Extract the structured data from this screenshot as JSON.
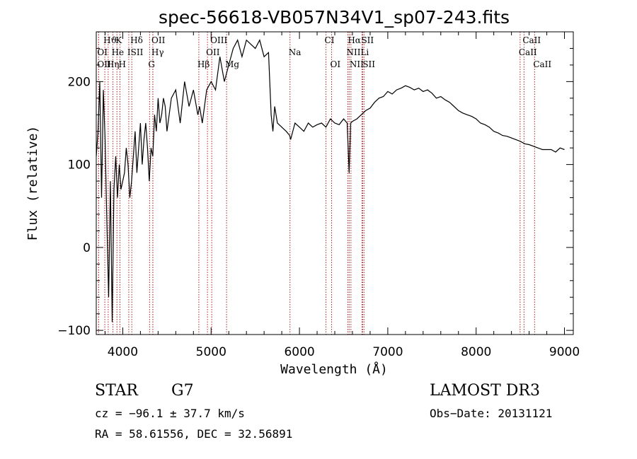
{
  "chart_data": {
    "type": "line",
    "title": "spec-56618-VB057N34V1_sp07-243.fits",
    "xlabel": "Wavelength (Å)",
    "ylabel": "Flux (relative)",
    "xlim": [
      3700,
      9100
    ],
    "ylim": [
      -105,
      260
    ],
    "xticks": [
      4000,
      5000,
      6000,
      7000,
      8000,
      9000
    ],
    "yticks": [
      -100,
      0,
      100,
      200
    ],
    "series": [
      {
        "name": "flux",
        "x": [
          3700,
          3720,
          3740,
          3760,
          3780,
          3800,
          3820,
          3840,
          3860,
          3880,
          3900,
          3920,
          3940,
          3960,
          3980,
          4000,
          4020,
          4040,
          4060,
          4080,
          4100,
          4120,
          4140,
          4160,
          4180,
          4200,
          4220,
          4240,
          4260,
          4280,
          4300,
          4320,
          4340,
          4360,
          4380,
          4400,
          4420,
          4440,
          4460,
          4480,
          4500,
          4550,
          4600,
          4650,
          4700,
          4750,
          4800,
          4850,
          4870,
          4900,
          4950,
          5000,
          5050,
          5100,
          5150,
          5200,
          5250,
          5300,
          5350,
          5400,
          5450,
          5500,
          5550,
          5600,
          5650,
          5680,
          5700,
          5720,
          5750,
          5800,
          5850,
          5890,
          5900,
          5950,
          6000,
          6050,
          6100,
          6150,
          6200,
          6250,
          6300,
          6350,
          6400,
          6450,
          6500,
          6540,
          6563,
          6580,
          6600,
          6650,
          6700,
          6750,
          6800,
          6850,
          6900,
          6950,
          7000,
          7050,
          7100,
          7150,
          7200,
          7250,
          7300,
          7350,
          7400,
          7450,
          7500,
          7550,
          7600,
          7650,
          7700,
          7750,
          7800,
          7850,
          7900,
          7950,
          8000,
          8050,
          8100,
          8150,
          8200,
          8250,
          8300,
          8350,
          8400,
          8450,
          8500,
          8550,
          8600,
          8650,
          8700,
          8750,
          8800,
          8850,
          8900,
          8950,
          9000
        ],
        "y": [
          110,
          140,
          200,
          60,
          190,
          130,
          30,
          -60,
          80,
          -90,
          70,
          110,
          60,
          100,
          70,
          80,
          90,
          120,
          100,
          60,
          80,
          110,
          140,
          90,
          120,
          150,
          100,
          130,
          150,
          120,
          80,
          120,
          110,
          160,
          140,
          180,
          150,
          160,
          180,
          170,
          140,
          180,
          190,
          150,
          200,
          170,
          190,
          160,
          170,
          150,
          190,
          200,
          190,
          230,
          200,
          220,
          240,
          250,
          230,
          250,
          245,
          240,
          250,
          230,
          235,
          160,
          140,
          170,
          150,
          145,
          140,
          135,
          130,
          150,
          145,
          140,
          150,
          145,
          148,
          150,
          145,
          155,
          150,
          148,
          155,
          150,
          90,
          150,
          152,
          155,
          160,
          165,
          168,
          175,
          180,
          182,
          188,
          185,
          190,
          192,
          195,
          193,
          190,
          192,
          188,
          190,
          186,
          180,
          182,
          178,
          175,
          170,
          165,
          162,
          160,
          158,
          155,
          150,
          148,
          145,
          140,
          138,
          135,
          134,
          132,
          130,
          128,
          125,
          124,
          122,
          120,
          118,
          118,
          118,
          115,
          120,
          118
        ]
      }
    ],
    "spectral_lines": [
      {
        "label": "Hϑ",
        "x": 3797,
        "row": 1
      },
      {
        "label": "K",
        "x": 3934,
        "row": 1
      },
      {
        "label": "Hδ",
        "x": 4102,
        "row": 1
      },
      {
        "label": "OII",
        "x": 4341,
        "row": 1
      },
      {
        "label": "OIII",
        "x": 5007,
        "row": 1
      },
      {
        "label": "CI",
        "x": 6300,
        "row": 1
      },
      {
        "label": "Hα",
        "x": 6563,
        "row": 1
      },
      {
        "label": "SII",
        "x": 6716,
        "row": 1
      },
      {
        "label": "CaII",
        "x": 8542,
        "row": 1
      },
      {
        "label": "OI",
        "x": 3727,
        "row": 2
      },
      {
        "label": "He",
        "x": 3889,
        "row": 2
      },
      {
        "label": "ISII",
        "x": 4068,
        "row": 2
      },
      {
        "label": "Hγ",
        "x": 4340,
        "row": 2
      },
      {
        "label": "OII",
        "x": 4959,
        "row": 2
      },
      {
        "label": "Na",
        "x": 5893,
        "row": 2
      },
      {
        "label": "NII",
        "x": 6548,
        "row": 2
      },
      {
        "label": "Li",
        "x": 6708,
        "row": 2
      },
      {
        "label": "CaII",
        "x": 8498,
        "row": 2
      },
      {
        "label": "OII",
        "x": 3727,
        "row": 3
      },
      {
        "label": "Hη",
        "x": 3835,
        "row": 3
      },
      {
        "label": "H",
        "x": 3968,
        "row": 3
      },
      {
        "label": "G",
        "x": 4304,
        "row": 3
      },
      {
        "label": "Hβ",
        "x": 4861,
        "row": 3
      },
      {
        "label": "Mg",
        "x": 5175,
        "row": 3
      },
      {
        "label": "OI",
        "x": 6364,
        "row": 3
      },
      {
        "label": "NII",
        "x": 6583,
        "row": 3
      },
      {
        "label": "SII",
        "x": 6731,
        "row": 3
      },
      {
        "label": "CaII",
        "x": 8662,
        "row": 3
      }
    ]
  },
  "info": {
    "class_label": "STAR",
    "subclass": "G7",
    "survey": "LAMOST DR3",
    "cz_line": "cz = −96.1 ± 37.7 km/s",
    "obs_date": "Obs−Date: 20131121",
    "radec_line": "RA =  58.61556, DEC =  32.56891"
  }
}
